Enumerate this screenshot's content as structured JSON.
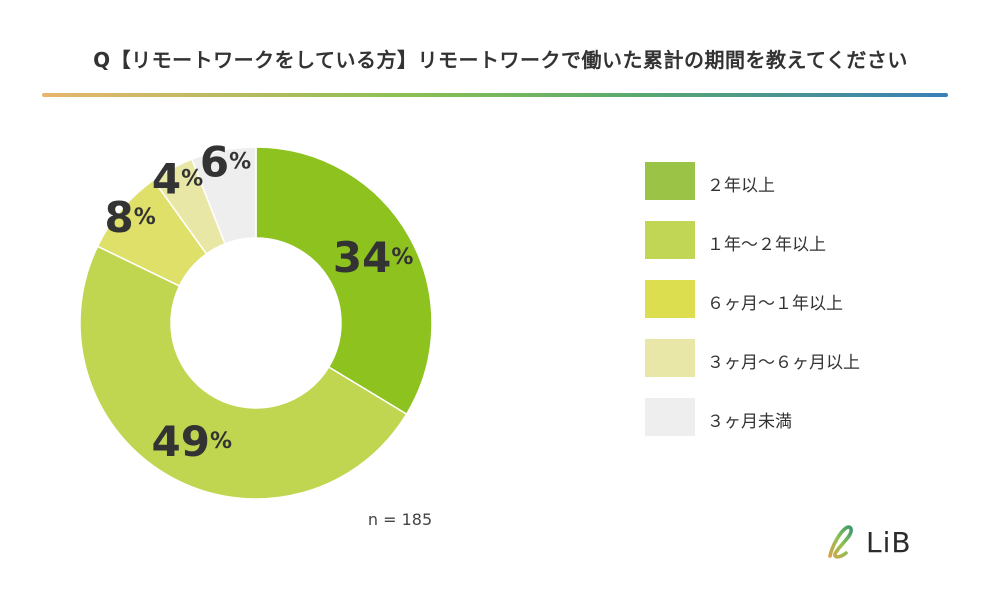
{
  "title": "Q【リモートワークをしている方】リモートワークで働いた累計の期間を教えてください",
  "chart_data": {
    "type": "pie",
    "variant": "donut",
    "title": "Q【リモートワークをしている方】リモートワークで働いた累計の期間を教えてください",
    "categories": [
      "２年以上",
      "１年〜２年以上",
      "６ヶ月〜１年以上",
      "３ヶ月〜６ヶ月以上",
      "３ヶ月未満"
    ],
    "values": [
      34,
      49,
      8,
      4,
      6
    ],
    "labels": [
      "34",
      "49",
      "8",
      "4",
      "6"
    ],
    "unit": "%",
    "colors": [
      "#8dc21f",
      "#c0d651",
      "#dfe06a",
      "#e8e7a5",
      "#eeeeee"
    ],
    "legend_colors": [
      "#9bc446",
      "#c1d655",
      "#dcdd4f",
      "#e8e7a8",
      "#eeeeee"
    ],
    "n_label": "n = 185",
    "legend_position": "right"
  },
  "logo": {
    "text": "LiB"
  }
}
